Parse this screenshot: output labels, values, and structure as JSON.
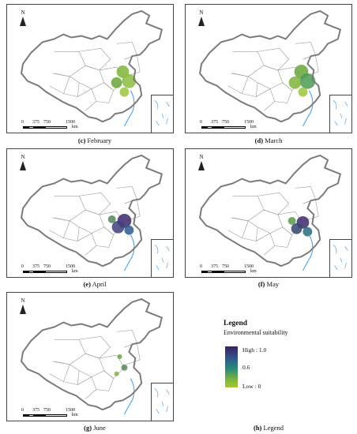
{
  "panels": [
    {
      "id": "c",
      "letter": "(c)",
      "month": "February"
    },
    {
      "id": "d",
      "letter": "(d)",
      "month": "March"
    },
    {
      "id": "e",
      "letter": "(e)",
      "month": "April"
    },
    {
      "id": "f",
      "letter": "(f)",
      "month": "May"
    },
    {
      "id": "g",
      "letter": "(g)",
      "month": "June"
    }
  ],
  "map_labels": {
    "north": "N",
    "scale_ticks": [
      "0",
      "375",
      "750",
      "1500"
    ],
    "scale_unit": "km"
  },
  "legend_caption": {
    "letter": "(h)",
    "text": "Legend"
  },
  "legend": {
    "title": "Legend",
    "subtitle": "Environmental suitability",
    "high": "High : 1.0",
    "mid": "0.6",
    "low": "Low : 0"
  },
  "colors": {
    "high": "#3b1f63",
    "mid": "#2a8b78",
    "low": "#a8c43a",
    "border": "#7a7a7a",
    "rivers": "#5aa9e6"
  }
}
